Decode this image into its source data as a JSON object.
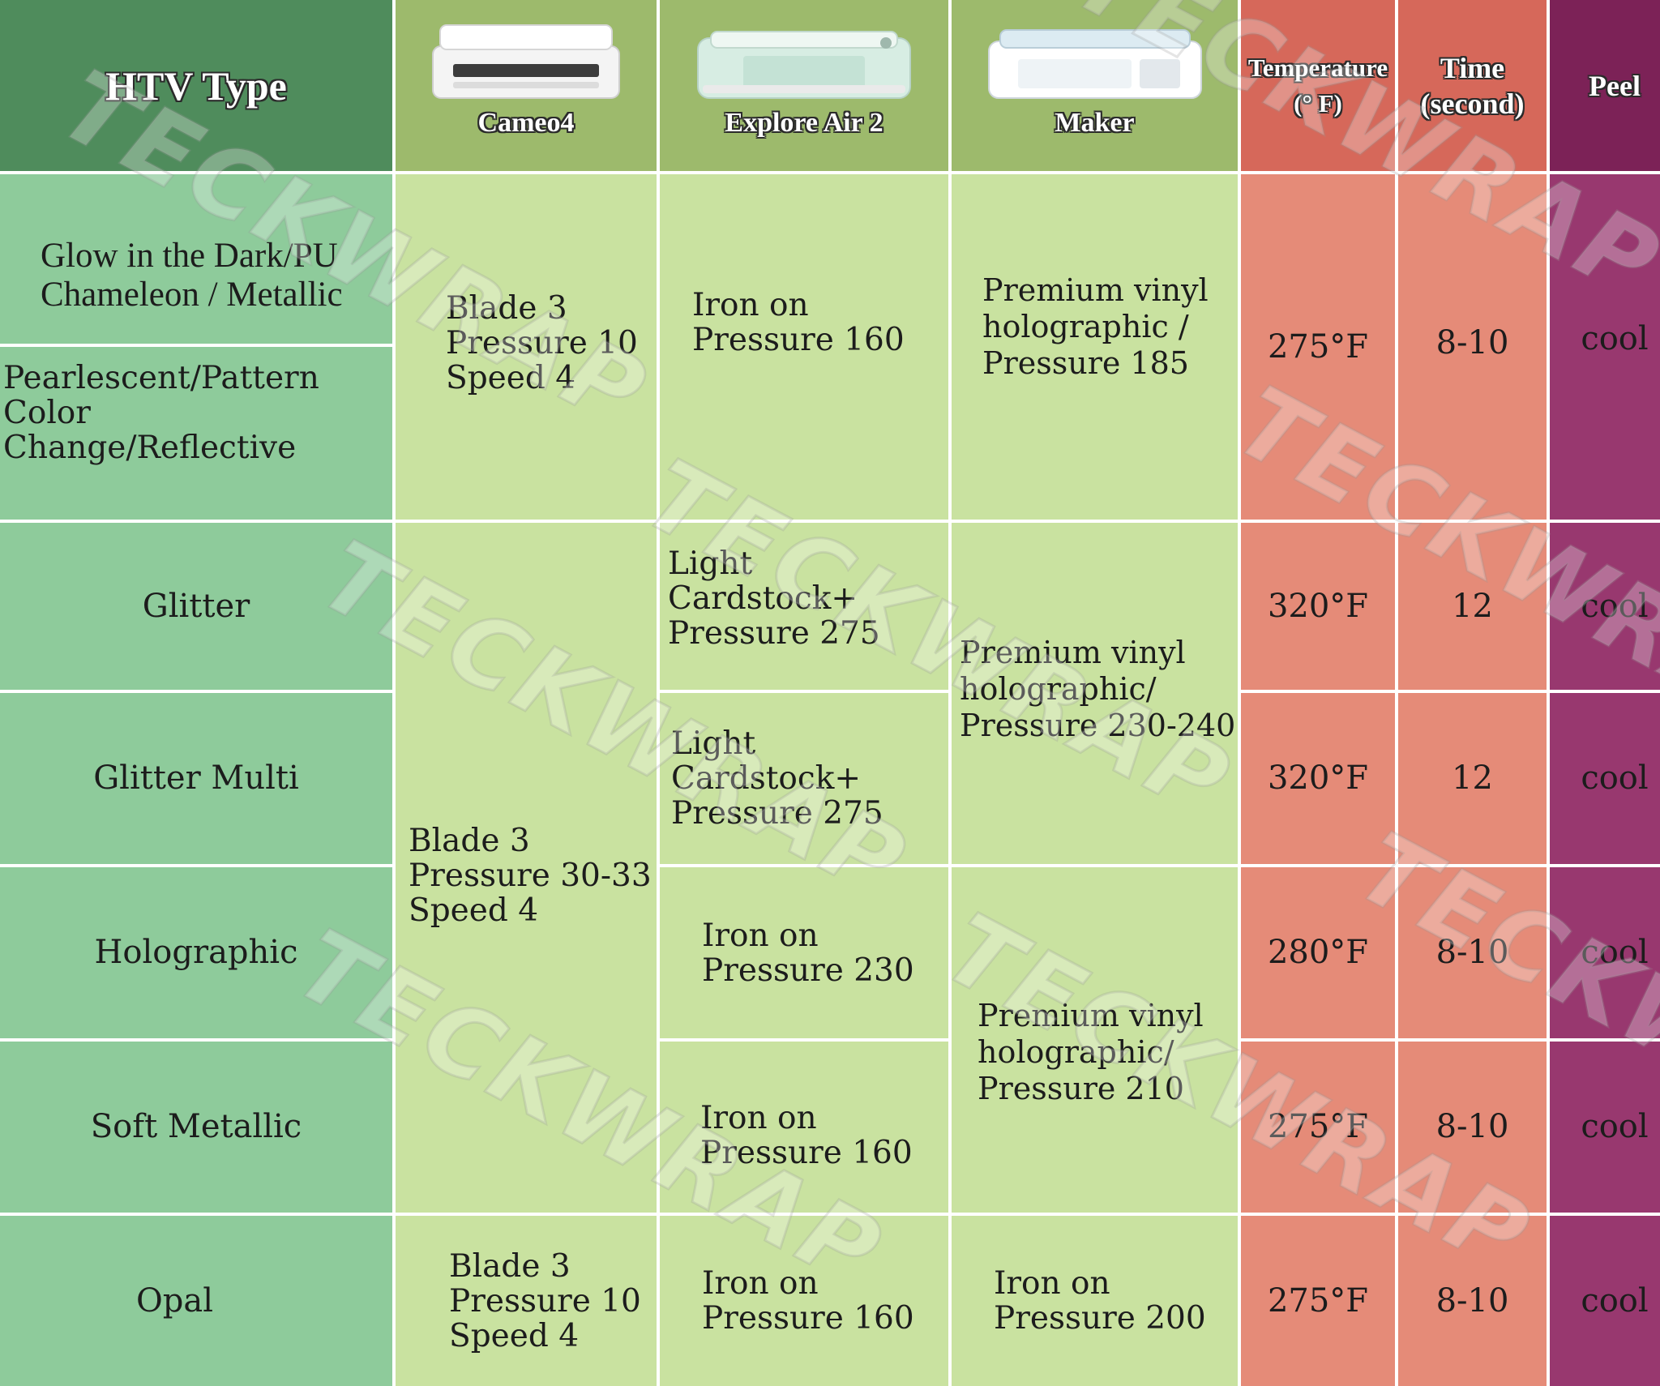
{
  "header": {
    "type": "HTV Type",
    "cameo": "Cameo4",
    "explore": "Explore Air 2",
    "maker": "Maker",
    "temperature": "Temperature\n(° F)",
    "time": "Time\n(second)",
    "peel": "Peel"
  },
  "rows": {
    "glow": "Glow in the Dark/PU\nChameleon / Metallic",
    "pearl": "Pearlescent/Pattern\nColor Change/Reflective",
    "glitter": "Glitter",
    "glitter_multi": "Glitter Multi",
    "holographic": "Holographic",
    "soft_metallic": "Soft Metallic",
    "opal": "Opal"
  },
  "cameo": {
    "group1": "Blade 3\nPressure 10\nSpeed 4",
    "group2": "Blade 3\nPressure 30-33\nSpeed 4",
    "opal": "Blade 3\nPressure 10\nSpeed 4"
  },
  "explore": {
    "group1": "Iron on\nPressure 160",
    "glitter": "Light Cardstock+\nPressure 275",
    "glitter_multi": "Light Cardstock+\nPressure 275",
    "holographic": "Iron on\nPressure 230",
    "soft_metallic": "Iron on\nPressure 160",
    "opal": "Iron on\nPressure 160"
  },
  "maker": {
    "group1": "Premium vinyl\nholographic /\nPressure 185",
    "glitter_group": "Premium vinyl\nholographic/\nPressure 230-240",
    "holo_group": "Premium vinyl\nholographic/\nPressure 210",
    "opal": "Iron on\nPressure 200"
  },
  "temperature": {
    "group1": "275°F",
    "glitter": "320°F",
    "glitter_multi": "320°F",
    "holographic": "280°F",
    "soft_metallic": "275°F",
    "opal": "275°F"
  },
  "time": {
    "group1": "8-10",
    "glitter": "12",
    "glitter_multi": "12",
    "holographic": "8-10",
    "soft_metallic": "8-10",
    "opal": "8-10"
  },
  "peel": {
    "group1": "cool",
    "glitter": "cool",
    "glitter_multi": "cool",
    "holographic": "cool",
    "soft_metallic": "cool",
    "opal": "cool"
  },
  "watermark": "TECKWRAP",
  "colors": {
    "type_header": "#4f8c5c",
    "type_column": "#8ecb9b",
    "cricut_header": "#9dba6c",
    "cricut_column": "#c9e2a0",
    "temp_header": "#d6685a",
    "temp_column": "#e58b78",
    "peel_header": "#7c2257",
    "peel_column": "#98386f"
  }
}
